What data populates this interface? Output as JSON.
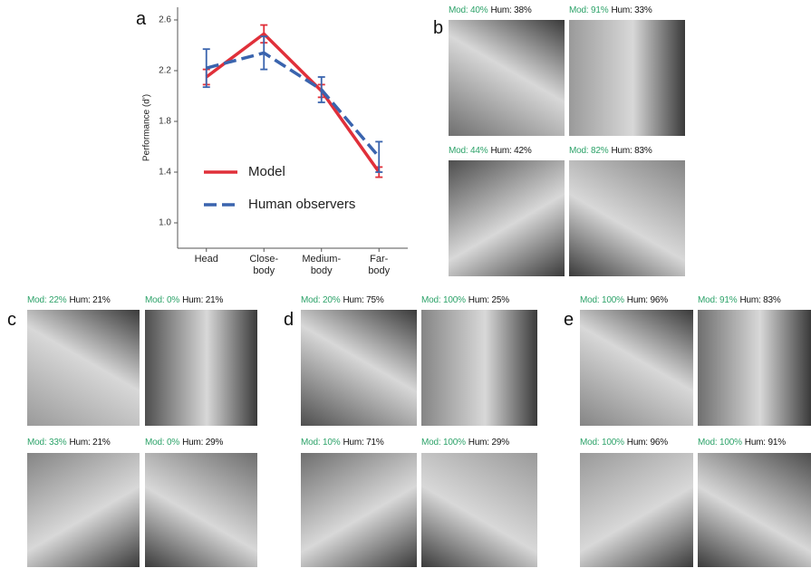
{
  "chart_data": {
    "type": "line",
    "panel": "a",
    "y_label": "Performance (d')",
    "categories": [
      "Head",
      "Close-\nbody",
      "Medium-\nbody",
      "Far-\nbody"
    ],
    "series": [
      {
        "name": "Model",
        "color": "#e0303a",
        "dash": false,
        "values": [
          2.15,
          2.49,
          2.04,
          1.4
        ],
        "errors": [
          0.06,
          0.07,
          0.05,
          0.04
        ]
      },
      {
        "name": "Human observers",
        "color": "#3a64ae",
        "dash": true,
        "values": [
          2.22,
          2.34,
          2.05,
          1.52
        ],
        "errors": [
          0.15,
          0.13,
          0.1,
          0.12
        ]
      }
    ],
    "ylim": [
      0.8,
      2.7
    ],
    "yticks": [
      {
        "value": 1,
        "label": "1.0"
      },
      1.4,
      1.8,
      2.2,
      2.6
    ],
    "grid": false,
    "legend": "lower left"
  },
  "panels": [
    {
      "letter": "b",
      "images": [
        {
          "mod": "Mod: 40%",
          "hum": "Hum: 38%"
        },
        {
          "mod": "Mod: 91%",
          "hum": "Hum: 33%"
        },
        {
          "mod": "Mod: 44%",
          "hum": "Hum: 42%"
        },
        {
          "mod": "Mod: 82%",
          "hum": "Hum: 83%"
        }
      ]
    },
    {
      "letter": "c",
      "images": [
        {
          "mod": "Mod: 22%",
          "hum": "Hum: 21%"
        },
        {
          "mod": "Mod: 0%",
          "hum": "Hum: 21%"
        },
        {
          "mod": "Mod: 33%",
          "hum": "Hum: 21%"
        },
        {
          "mod": "Mod: 0%",
          "hum": "Hum: 29%"
        }
      ]
    },
    {
      "letter": "d",
      "images": [
        {
          "mod": "Mod: 20%",
          "hum": "Hum: 75%"
        },
        {
          "mod": "Mod: 100%",
          "hum": "Hum: 25%"
        },
        {
          "mod": "Mod: 10%",
          "hum": "Hum: 71%"
        },
        {
          "mod": "Mod: 100%",
          "hum": "Hum: 29%"
        }
      ]
    },
    {
      "letter": "e",
      "images": [
        {
          "mod": "Mod: 100%",
          "hum": "Hum: 96%"
        },
        {
          "mod": "Mod: 91%",
          "hum": "Hum: 83%"
        },
        {
          "mod": "Mod: 100%",
          "hum": "Hum: 96%"
        },
        {
          "mod": "Mod: 100%",
          "hum": "Hum: 91%"
        }
      ]
    }
  ]
}
